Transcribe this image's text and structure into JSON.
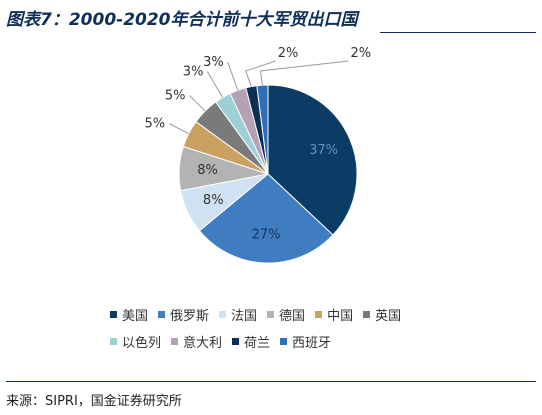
{
  "header": {
    "title": "图表7：2000-2020年合计前十大军贸出口国"
  },
  "footer": {
    "source": "来源：SIPRI，国金证券研究所"
  },
  "chart_data": {
    "type": "pie",
    "title": "",
    "legend_position": "bottom",
    "slices": [
      {
        "name": "美国",
        "value": 37,
        "label": "37%",
        "color": "#0b3c66"
      },
      {
        "name": "俄罗斯",
        "value": 27,
        "label": "27%",
        "color": "#3f7cc0"
      },
      {
        "name": "法国",
        "value": 8,
        "label": "8%",
        "color": "#cfe2f3"
      },
      {
        "name": "德国",
        "value": 8,
        "label": "8%",
        "color": "#b3b3b3"
      },
      {
        "name": "中国",
        "value": 5,
        "label": "5%",
        "color": "#c9a161"
      },
      {
        "name": "英国",
        "value": 5,
        "label": "5%",
        "color": "#7a7a7a"
      },
      {
        "name": "以色列",
        "value": 3,
        "label": "3%",
        "color": "#9ccfd6"
      },
      {
        "name": "意大利",
        "value": 3,
        "label": "3%",
        "color": "#b4a1b5"
      },
      {
        "name": "荷兰",
        "value": 2,
        "label": "2%",
        "color": "#0b2f55"
      },
      {
        "name": "西班牙",
        "value": 2,
        "label": "2%",
        "color": "#2f6fb6"
      }
    ]
  }
}
